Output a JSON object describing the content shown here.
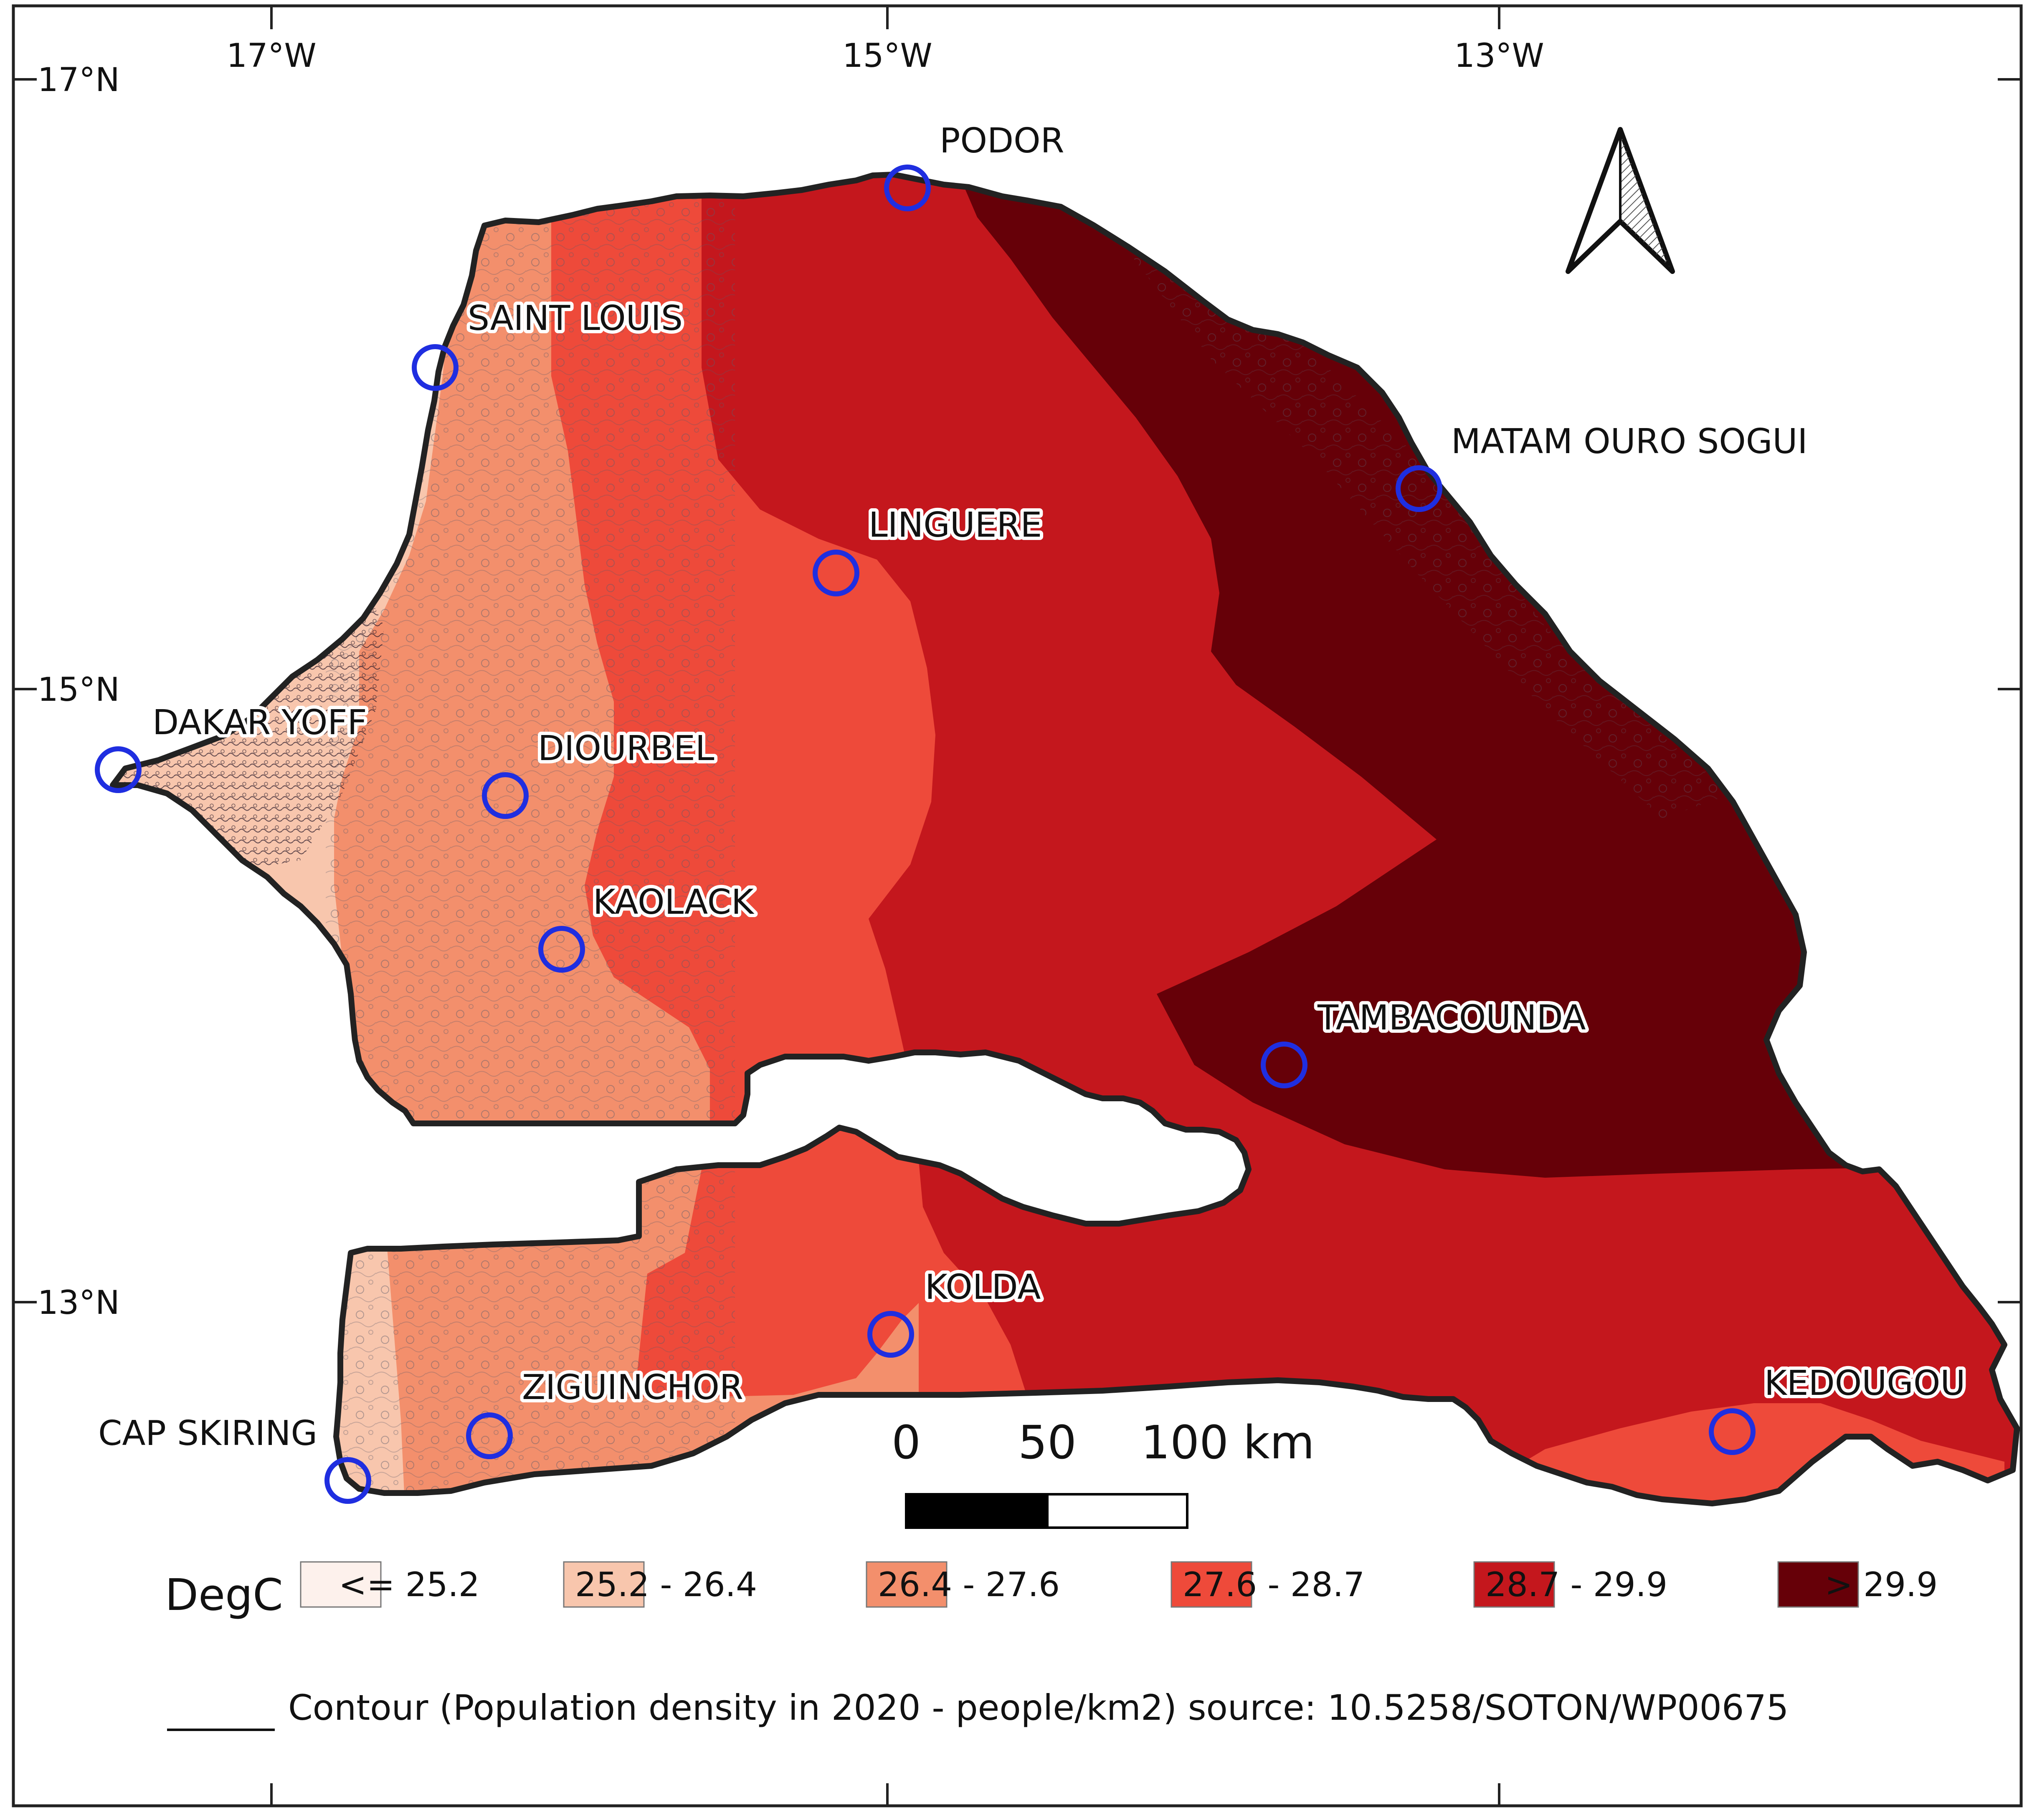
{
  "map": {
    "grid": {
      "lon_labels": [
        "17°W",
        "15°W",
        "13°W"
      ],
      "lat_labels": [
        "17°N",
        "15°N",
        "13°N"
      ]
    },
    "cities": [
      {
        "name": "PODOR"
      },
      {
        "name": "SAINT LOUIS"
      },
      {
        "name": "MATAM OURO SOGUI"
      },
      {
        "name": "LINGUERE"
      },
      {
        "name": "DAKAR YOFF"
      },
      {
        "name": "DIOURBEL"
      },
      {
        "name": "KAOLACK"
      },
      {
        "name": "TAMBACOUNDA"
      },
      {
        "name": "KOLDA"
      },
      {
        "name": "ZIGUINCHOR"
      },
      {
        "name": "CAP SKIRING"
      },
      {
        "name": "KEDOUGOU"
      }
    ],
    "city_marker_color": "#1f2ee0",
    "north_arrow_icon": "north-arrow-icon",
    "scale_bar": {
      "labels": [
        "0",
        "50",
        "100 km"
      ]
    },
    "legend": {
      "title": "DegC",
      "classes": [
        {
          "label": "<= 25.2",
          "color": "#fdf1ec"
        },
        {
          "label": "25.2 - 26.4",
          "color": "#f8c6ad"
        },
        {
          "label": "26.4 - 27.6",
          "color": "#f38f6c"
        },
        {
          "label": "27.6 - 28.7",
          "color": "#ee4a3a"
        },
        {
          "label": "28.7 - 29.9",
          "color": "#c4171d"
        },
        {
          "label": "> 29.9",
          "color": "#660008"
        }
      ]
    },
    "contour_note": "Contour (Population density in 2020 - people/km2) source: 10.5258/SOTON/WP00675"
  }
}
